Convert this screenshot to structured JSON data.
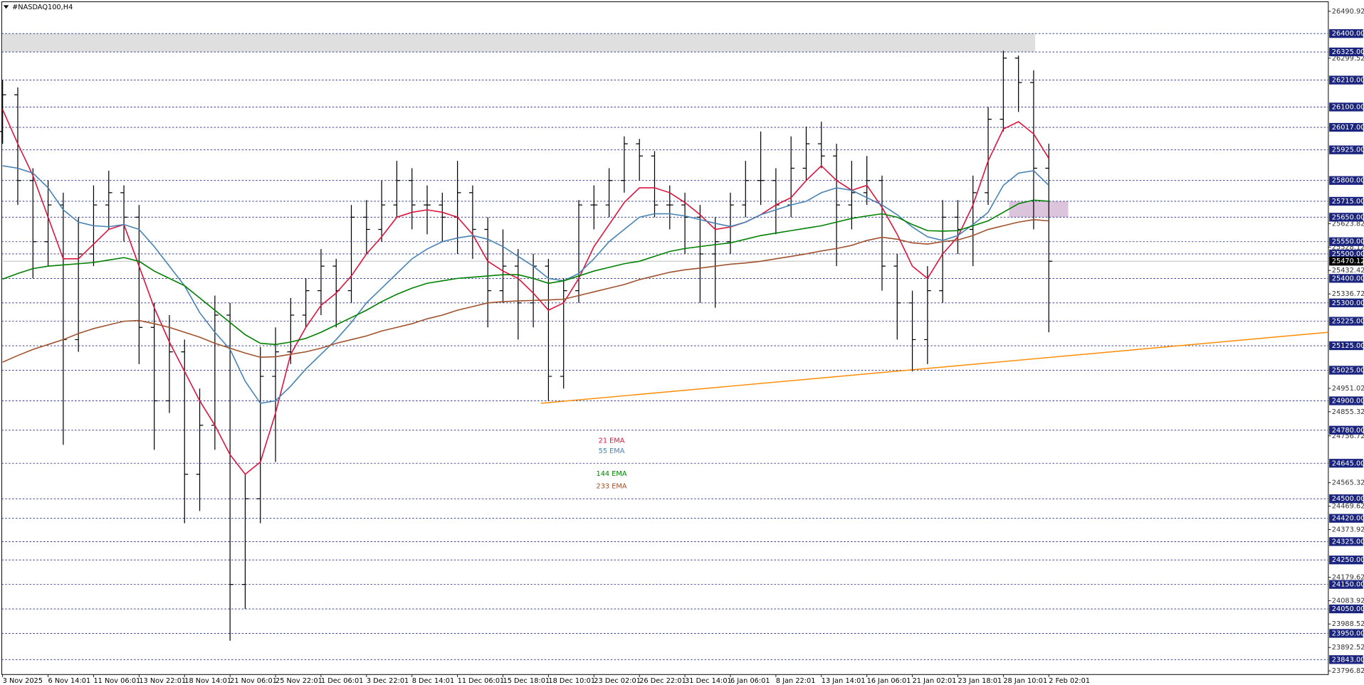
{
  "chart_data": {
    "type": "ohlc",
    "title": "#NASDAQ100,H4",
    "bar_color": "#000000",
    "categories": [
      "3 Nov 2025",
      null,
      null,
      "6 Nov 14:01",
      null,
      null,
      "11 Nov 06:01",
      null,
      null,
      "13 Nov 22:01",
      null,
      null,
      "18 Nov 14:01",
      null,
      null,
      "21 Nov 06:01",
      null,
      null,
      "25 Nov 22:01",
      null,
      null,
      "1 Dec 06:01",
      null,
      null,
      "3 Dec 22:01",
      null,
      null,
      "8 Dec 14:01",
      null,
      null,
      "11 Dec 06:01",
      null,
      null,
      "15 Dec 18:01",
      null,
      null,
      "18 Dec 10:01",
      null,
      null,
      "23 Dec 02:01",
      null,
      null,
      "26 Dec 22:01",
      null,
      null,
      "31 Dec 14:01",
      null,
      null,
      "6 Jan 06:01",
      null,
      null,
      "8 Jan 22:01",
      null,
      null,
      "13 Jan 14:01",
      null,
      null,
      "16 Jan 06:01",
      null,
      null,
      "21 Jan 02:01",
      null,
      null,
      "23 Jan 18:01",
      null,
      null,
      "28 Jan 10:01",
      null,
      null,
      "2 Feb 02:01"
    ],
    "ohlc": [
      [
        26000,
        26210,
        25950,
        26150
      ],
      [
        26150,
        26180,
        25700,
        25800
      ],
      [
        25800,
        25850,
        25400,
        25550
      ],
      [
        25550,
        25800,
        25450,
        25700
      ],
      [
        25700,
        25750,
        24720,
        25150
      ],
      [
        25150,
        25650,
        25100,
        25500
      ],
      [
        25500,
        25780,
        25450,
        25700
      ],
      [
        25700,
        25840,
        25600,
        25750
      ],
      [
        25750,
        25780,
        25550,
        25650
      ],
      [
        25650,
        25700,
        25050,
        25200
      ],
      [
        25200,
        25300,
        24700,
        24900
      ],
      [
        24900,
        25250,
        24850,
        25100
      ],
      [
        25100,
        25150,
        24400,
        24600
      ],
      [
        24600,
        24950,
        24450,
        24800
      ],
      [
        24800,
        25330,
        24700,
        25250
      ],
      [
        25250,
        25300,
        23920,
        24150
      ],
      [
        24150,
        24600,
        24050,
        24500
      ],
      [
        24500,
        25120,
        24400,
        25000
      ],
      [
        25000,
        25200,
        24650,
        25100
      ],
      [
        25100,
        25320,
        25050,
        25250
      ],
      [
        25250,
        25400,
        25200,
        25350
      ],
      [
        25350,
        25520,
        25250,
        25450
      ],
      [
        25450,
        25480,
        25200,
        25350
      ],
      [
        25350,
        25700,
        25300,
        25650
      ],
      [
        25650,
        25720,
        25500,
        25600
      ],
      [
        25600,
        25800,
        25550,
        25700
      ],
      [
        25700,
        25880,
        25650,
        25800
      ],
      [
        25800,
        25850,
        25600,
        25700
      ],
      [
        25700,
        25780,
        25580,
        25700
      ],
      [
        25700,
        25750,
        25550,
        25650
      ],
      [
        25650,
        25880,
        25500,
        25750
      ],
      [
        25750,
        25780,
        25480,
        25600
      ],
      [
        25600,
        25650,
        25200,
        25350
      ],
      [
        25350,
        25600,
        25300,
        25450
      ],
      [
        25450,
        25520,
        25150,
        25300
      ],
      [
        25300,
        25500,
        25200,
        25450
      ],
      [
        25450,
        25480,
        24900,
        25000
      ],
      [
        25000,
        25400,
        24950,
        25350
      ],
      [
        25350,
        25720,
        25300,
        25700
      ],
      [
        25700,
        25780,
        25600,
        25700
      ],
      [
        25700,
        25850,
        25650,
        25800
      ],
      [
        25800,
        25980,
        25750,
        25950
      ],
      [
        25950,
        25970,
        25800,
        25900
      ],
      [
        25900,
        25920,
        25650,
        25700
      ],
      [
        25700,
        25780,
        25600,
        25700
      ],
      [
        25700,
        25750,
        25500,
        25650
      ],
      [
        25650,
        25700,
        25300,
        25500
      ],
      [
        25500,
        25650,
        25280,
        25550
      ],
      [
        25550,
        25750,
        25500,
        25700
      ],
      [
        25700,
        25880,
        25650,
        25800
      ],
      [
        25800,
        26000,
        25700,
        25800
      ],
      [
        25800,
        25850,
        25580,
        25700
      ],
      [
        25700,
        25980,
        25650,
        25850
      ],
      [
        25850,
        26020,
        25800,
        25950
      ],
      [
        25950,
        26040,
        25850,
        25900
      ],
      [
        25900,
        25950,
        25450,
        25700
      ],
      [
        25700,
        25880,
        25600,
        25750
      ],
      [
        25750,
        25900,
        25700,
        25800
      ],
      [
        25800,
        25820,
        25350,
        25450
      ],
      [
        25450,
        25500,
        25150,
        25300
      ],
      [
        25300,
        25350,
        25020,
        25150
      ],
      [
        25150,
        25450,
        25050,
        25350
      ],
      [
        25350,
        25720,
        25300,
        25650
      ],
      [
        25650,
        25720,
        25500,
        25600
      ],
      [
        25600,
        25820,
        25450,
        25750
      ],
      [
        25750,
        26100,
        25700,
        26050
      ],
      [
        26050,
        26330,
        26000,
        26300
      ],
      [
        26300,
        26310,
        26080,
        26200
      ],
      [
        26200,
        26250,
        25600,
        25850
      ],
      [
        25850,
        25950,
        25180,
        25470
      ]
    ],
    "series": [
      {
        "name": "21 EMA",
        "color": "#dc143c",
        "values": [
          26090,
          25950,
          25820,
          25650,
          25480,
          25480,
          25540,
          25600,
          25620,
          25450,
          25280,
          25140,
          25020,
          24900,
          24800,
          24680,
          24600,
          24650,
          24850,
          25090,
          25200,
          25290,
          25340,
          25410,
          25500,
          25570,
          25650,
          25670,
          25680,
          25670,
          25650,
          25580,
          25470,
          25430,
          25400,
          25340,
          25270,
          25300,
          25400,
          25530,
          25620,
          25710,
          25770,
          25770,
          25750,
          25710,
          25660,
          25600,
          25610,
          25630,
          25660,
          25700,
          25730,
          25800,
          25860,
          25800,
          25760,
          25780,
          25690,
          25580,
          25450,
          25400,
          25500,
          25570,
          25700,
          25880,
          26010,
          26040,
          25990,
          25890
        ]
      },
      {
        "name": "55 EMA",
        "color": "#4682b4",
        "values": [
          25860,
          25850,
          25830,
          25770,
          25680,
          25630,
          25615,
          25611,
          25620,
          25600,
          25530,
          25450,
          25370,
          25260,
          25180,
          25110,
          24980,
          24890,
          24900,
          24960,
          25030,
          25090,
          25150,
          25220,
          25300,
          25360,
          25420,
          25480,
          25520,
          25550,
          25565,
          25575,
          25560,
          25530,
          25490,
          25450,
          25400,
          25390,
          25420,
          25480,
          25550,
          25600,
          25650,
          25664,
          25664,
          25655,
          25640,
          25625,
          25612,
          25630,
          25660,
          25680,
          25700,
          25715,
          25750,
          25770,
          25760,
          25730,
          25700,
          25660,
          25610,
          25570,
          25555,
          25575,
          25620,
          25670,
          25780,
          25830,
          25840,
          25780
        ]
      },
      {
        "name": "144 EMA",
        "color": "#008000",
        "values": [
          25397,
          25420,
          25440,
          25450,
          25455,
          25460,
          25465,
          25475,
          25485,
          25470,
          25430,
          25400,
          25370,
          25320,
          25270,
          25220,
          25170,
          25135,
          25130,
          25140,
          25155,
          25180,
          25210,
          25240,
          25270,
          25305,
          25335,
          25360,
          25380,
          25390,
          25400,
          25405,
          25410,
          25415,
          25415,
          25400,
          25380,
          25390,
          25410,
          25430,
          25445,
          25460,
          25470,
          25490,
          25510,
          25522,
          25530,
          25538,
          25545,
          25560,
          25575,
          25585,
          25595,
          25605,
          25615,
          25630,
          25645,
          25655,
          25664,
          25650,
          25620,
          25595,
          25593,
          25595,
          25615,
          25635,
          25670,
          25705,
          25720,
          25715
        ]
      },
      {
        "name": "233 EMA",
        "color": "#a0522d",
        "values": [
          25058,
          25085,
          25110,
          25130,
          25150,
          25175,
          25195,
          25210,
          25225,
          25228,
          25215,
          25200,
          25180,
          25160,
          25135,
          25115,
          25095,
          25078,
          25080,
          25090,
          25100,
          25115,
          25135,
          25150,
          25165,
          25185,
          25200,
          25215,
          25235,
          25250,
          25270,
          25285,
          25300,
          25305,
          25308,
          25310,
          25312,
          25315,
          25330,
          25345,
          25360,
          25375,
          25395,
          25410,
          25425,
          25435,
          25442,
          25450,
          25458,
          25463,
          25470,
          25480,
          25490,
          25500,
          25512,
          25522,
          25535,
          25555,
          25568,
          25560,
          25545,
          25540,
          25550,
          25557,
          25575,
          25600,
          25615,
          25630,
          25640,
          25635
        ]
      }
    ],
    "ylim": [
      23782,
      26530
    ],
    "yticks": [
      26490.92,
      26299.52,
      25623.82,
      25528.12,
      25432.42,
      25336.72,
      24951.02,
      24855.32,
      24756.72,
      24565.32,
      24469.62,
      24373.92,
      24179.62,
      24083.92,
      23988.52,
      23892.52,
      23796.82
    ],
    "levels": [
      {
        "value": 26400,
        "label": "26400.00"
      },
      {
        "value": 26325,
        "label": "26325.00"
      },
      {
        "value": 26210,
        "label": "26210.00"
      },
      {
        "value": 26100,
        "label": "26100.00"
      },
      {
        "value": 26017,
        "label": "26017.00"
      },
      {
        "value": 25925,
        "label": "25925.00"
      },
      {
        "value": 25800,
        "label": "25800.00"
      },
      {
        "value": 25715,
        "label": "25715.00"
      },
      {
        "value": 25650,
        "label": "25650.00"
      },
      {
        "value": 25550,
        "label": "25550.00"
      },
      {
        "value": 25500,
        "label": "25500.00"
      },
      {
        "value": 25400,
        "label": "25400.00"
      },
      {
        "value": 25300,
        "label": "25300.00"
      },
      {
        "value": 25225,
        "label": "25225.00"
      },
      {
        "value": 25125,
        "label": "25125.00"
      },
      {
        "value": 25025,
        "label": "25025.00"
      },
      {
        "value": 24900,
        "label": "24900.00"
      },
      {
        "value": 24780,
        "label": "24780.00"
      },
      {
        "value": 24645,
        "label": "24645.00"
      },
      {
        "value": 24500,
        "label": "24500.00"
      },
      {
        "value": 24420,
        "label": "24420.00"
      },
      {
        "value": 24325,
        "label": "24325.00"
      },
      {
        "value": 24250,
        "label": "24250.00"
      },
      {
        "value": 24150,
        "label": "24150.00"
      },
      {
        "value": 24050,
        "label": "24050.00"
      },
      {
        "value": 23950,
        "label": "23950.00"
      },
      {
        "value": 23843,
        "label": "23843.00"
      }
    ],
    "level_color": "#1a237e",
    "last_price": 25470.12,
    "zones": [
      {
        "from": 26325,
        "to": 26400,
        "color": "#dcdcdc"
      },
      {
        "from": 25650,
        "to": 25715,
        "color": "#d8bfd8"
      }
    ],
    "trendline": {
      "from": 24890,
      "to": 25180,
      "color": "#ff8c00"
    }
  }
}
